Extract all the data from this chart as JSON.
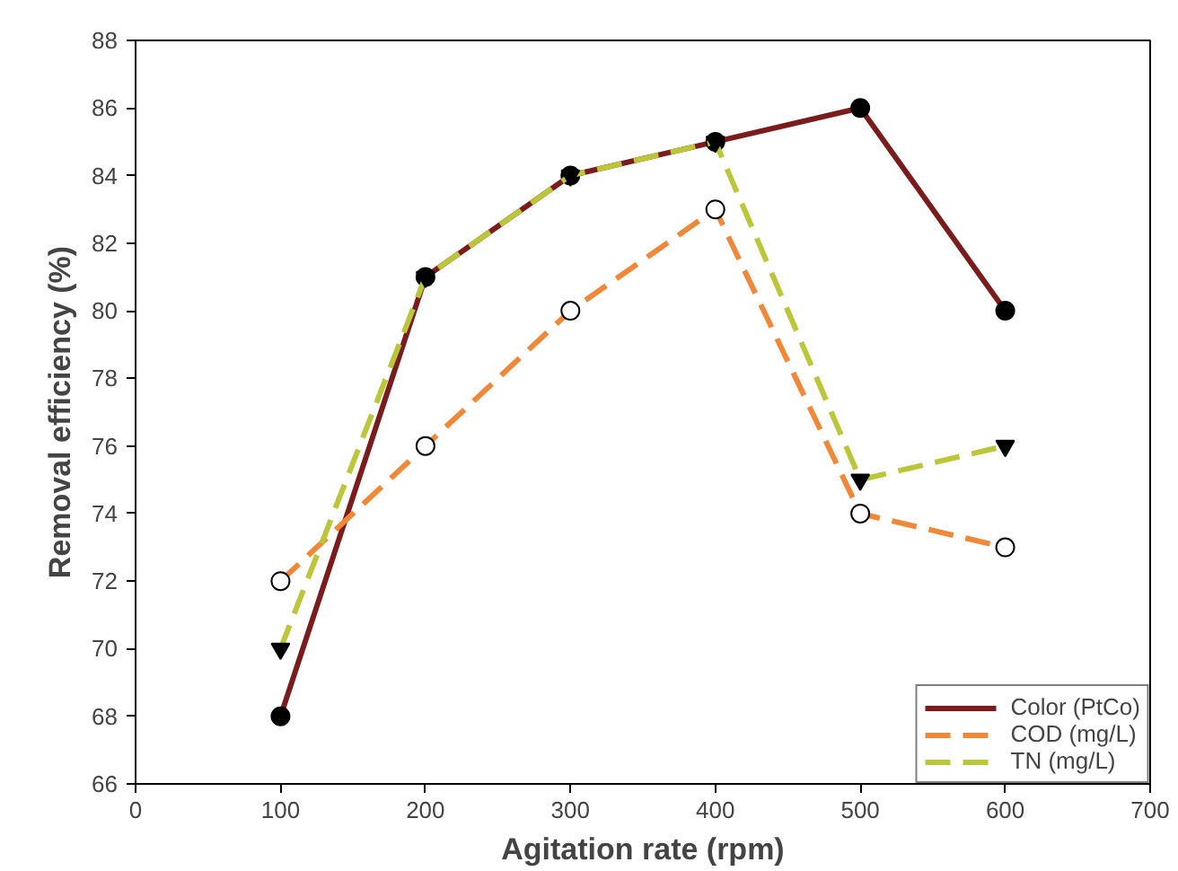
{
  "chart_data": {
    "type": "line",
    "xlabel": "Agitation rate (rpm)",
    "ylabel": "Removal efficiency (%)",
    "x": [
      100,
      200,
      300,
      400,
      500,
      600
    ],
    "series": [
      {
        "name": "Color (PtCo)",
        "color": "#7b1c1c",
        "values": [
          68,
          81,
          84,
          85,
          86,
          80
        ],
        "marker": "circle",
        "line_style": "solid"
      },
      {
        "name": "COD (mg/L)",
        "color": "#f0883a",
        "values": [
          72,
          76,
          80,
          83,
          74,
          73
        ],
        "marker": "circle",
        "line_style": "dashed"
      },
      {
        "name": "TN (mg/L)",
        "color": "#bcc63a",
        "values": [
          70,
          81,
          84,
          85,
          75,
          76
        ],
        "marker": "triangle",
        "line_style": "dashed"
      }
    ],
    "xlim": [
      0,
      700
    ],
    "xticks": [
      0,
      100,
      200,
      300,
      400,
      500,
      600,
      700
    ],
    "ylim": [
      66,
      88
    ],
    "yticks": [
      66,
      68,
      70,
      72,
      74,
      76,
      78,
      80,
      82,
      84,
      86,
      88
    ],
    "grid": false,
    "legend": "bottom right"
  }
}
